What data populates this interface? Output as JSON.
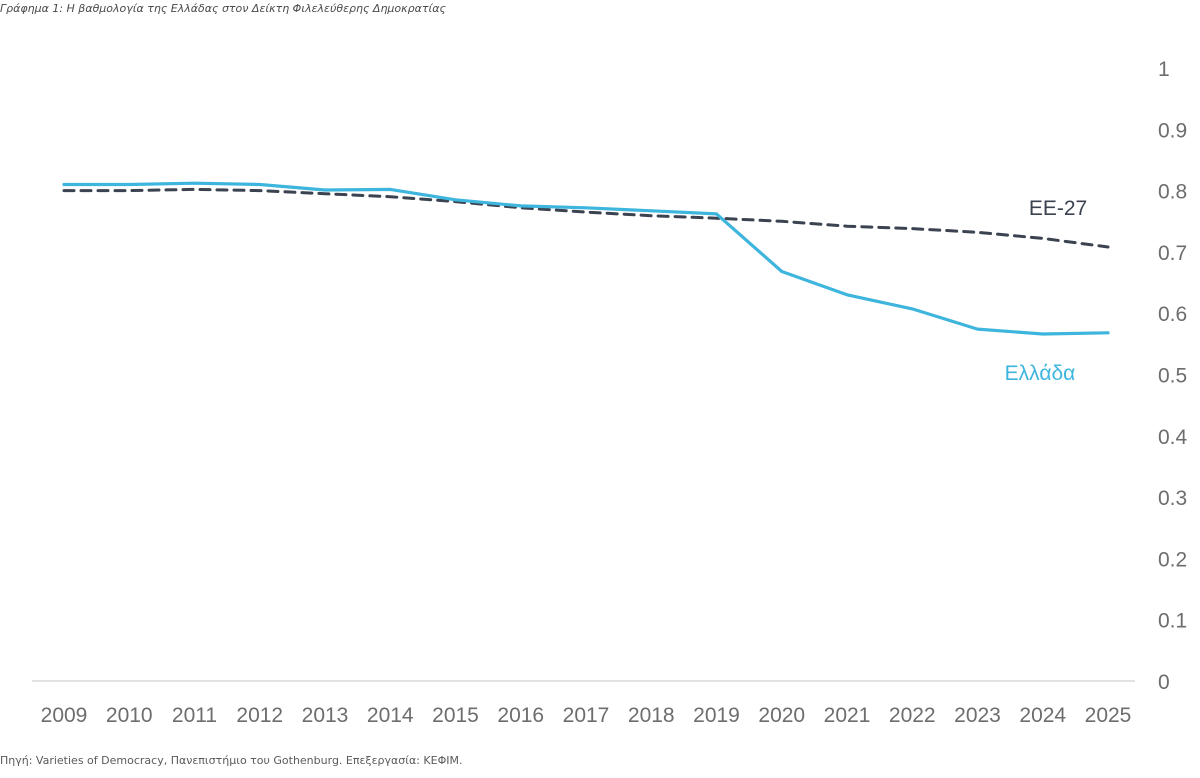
{
  "header": {
    "title": "Γράφημα 1: Η βαθμολογία της Ελλάδας στον Δείκτη Φιλελεύθερης Δημοκρατίας"
  },
  "footer": {
    "source": "Πηγή: Varieties of Democracy, Πανεπιστήμιο του Gothenburg. Επεξεργασία: ΚΕΦΙΜ."
  },
  "chart_data": {
    "type": "line",
    "title": "Γράφημα 1: Η βαθμολογία της Ελλάδας στον Δείκτη Φιλελεύθερης Δημοκρατίας",
    "xlabel": "",
    "ylabel": "",
    "categories": [
      "2009",
      "2010",
      "2011",
      "2012",
      "2013",
      "2014",
      "2015",
      "2016",
      "2017",
      "2018",
      "2019",
      "2020",
      "2021",
      "2022",
      "2023",
      "2024",
      "2025"
    ],
    "y_ticks": [
      "0",
      "0.1",
      "0.2",
      "0.3",
      "0.4",
      "0.5",
      "0.6",
      "0.7",
      "0.8",
      "0.9",
      "1"
    ],
    "ylim": [
      0,
      1
    ],
    "y_axis_position": "right",
    "grid": false,
    "legend": "inline labels",
    "series": [
      {
        "name": "Ελλάδα",
        "color": "#3db5dd",
        "style": "solid",
        "values": [
          0.81,
          0.81,
          0.812,
          0.81,
          0.801,
          0.802,
          0.785,
          0.775,
          0.772,
          0.767,
          0.762,
          0.668,
          0.63,
          0.607,
          0.574,
          0.566,
          0.568
        ]
      },
      {
        "name": "ΕΕ-27",
        "color": "#3b4250",
        "style": "dashed",
        "values": [
          0.8,
          0.8,
          0.802,
          0.8,
          0.795,
          0.79,
          0.782,
          0.772,
          0.765,
          0.759,
          0.755,
          0.75,
          0.742,
          0.738,
          0.732,
          0.722,
          0.708
        ]
      }
    ]
  }
}
